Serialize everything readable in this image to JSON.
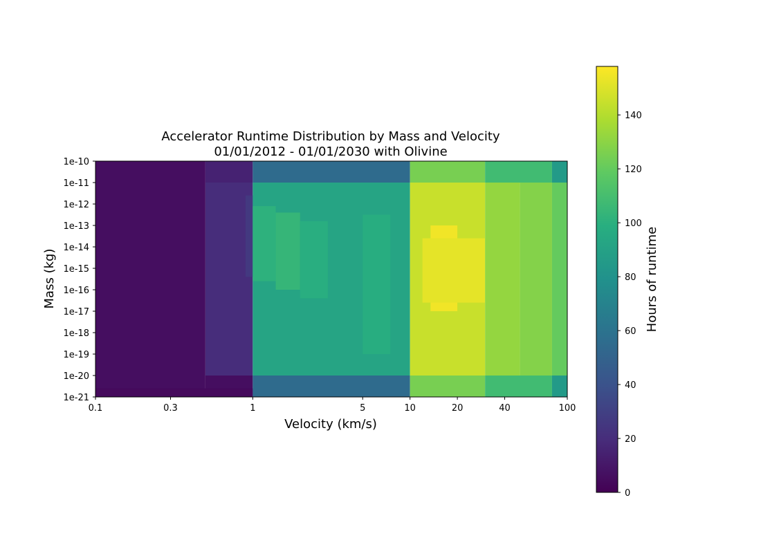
{
  "chart_data": {
    "type": "heatmap",
    "title": "Accelerator Runtime Distribution by Mass and Velocity",
    "subtitle": "01/01/2012 - 01/01/2030 with Olivine",
    "xlabel": "Velocity (km/s)",
    "ylabel": "Mass (kg)",
    "x_scale": "log",
    "y_scale": "log",
    "xlim": [
      0.1,
      100
    ],
    "ylim": [
      1e-21,
      1e-10
    ],
    "x_tick_values": [
      0.1,
      0.3,
      1,
      5,
      10,
      20,
      40,
      100
    ],
    "x_tick_labels": [
      "0.1",
      "0.3",
      "1",
      "5",
      "10",
      "20",
      "40",
      "100"
    ],
    "y_tick_exponents": [
      -10,
      -11,
      -12,
      -13,
      -14,
      -15,
      -16,
      -17,
      -18,
      -19,
      -20,
      -21
    ],
    "y_tick_labels": [
      "1e-10",
      "1e-11",
      "1e-12",
      "1e-13",
      "1e-14",
      "1e-15",
      "1e-16",
      "1e-17",
      "1e-18",
      "1e-19",
      "1e-20",
      "1e-21"
    ],
    "colormap": "viridis",
    "colorbar": {
      "label": "Hours of runtime",
      "range": [
        0,
        158
      ],
      "tick_values": [
        0,
        20,
        40,
        60,
        80,
        100,
        120,
        140
      ],
      "tick_labels": [
        "0",
        "20",
        "40",
        "60",
        "80",
        "100",
        "120",
        "140"
      ]
    },
    "grid": false,
    "cells": [
      {
        "x": [
          0.1,
          0.5
        ],
        "y": [
          -21,
          -10
        ],
        "value": 6
      },
      {
        "x": [
          0.5,
          1
        ],
        "y": [
          -20,
          -11
        ],
        "value": 20
      },
      {
        "x": [
          0.5,
          1
        ],
        "y": [
          -11,
          -10
        ],
        "value": 15
      },
      {
        "x": [
          0.9,
          1
        ],
        "y": [
          -15.4,
          -11.6
        ],
        "value": 26
      },
      {
        "x": [
          0.5,
          1
        ],
        "y": [
          -21,
          -20
        ],
        "value": 6
      },
      {
        "x": [
          0.1,
          1
        ],
        "y": [
          -21,
          -20.6
        ],
        "value": 4
      },
      {
        "x": [
          1,
          10
        ],
        "y": [
          -20,
          -11
        ],
        "value": 92
      },
      {
        "x": [
          1,
          10
        ],
        "y": [
          -11,
          -10
        ],
        "value": 55
      },
      {
        "x": [
          1,
          10
        ],
        "y": [
          -21,
          -20
        ],
        "value": 55
      },
      {
        "x": [
          1,
          1.4
        ],
        "y": [
          -15.6,
          -12.1
        ],
        "value": 101
      },
      {
        "x": [
          1.4,
          2
        ],
        "y": [
          -16,
          -12.4
        ],
        "value": 104
      },
      {
        "x": [
          2,
          3
        ],
        "y": [
          -16.4,
          -12.8
        ],
        "value": 99
      },
      {
        "x": [
          5,
          7.5
        ],
        "y": [
          -19,
          -12.5
        ],
        "value": 98
      },
      {
        "x": [
          10,
          30
        ],
        "y": [
          -20,
          -11
        ],
        "value": 145
      },
      {
        "x": [
          10,
          30
        ],
        "y": [
          -11,
          -10
        ],
        "value": 125
      },
      {
        "x": [
          10,
          30
        ],
        "y": [
          -21,
          -20
        ],
        "value": 125
      },
      {
        "x": [
          13.5,
          20
        ],
        "y": [
          -17,
          -13
        ],
        "value": 155
      },
      {
        "x": [
          12,
          30
        ],
        "y": [
          -16.6,
          -13.6
        ],
        "value": 152
      },
      {
        "x": [
          30,
          50
        ],
        "y": [
          -20,
          -11
        ],
        "value": 132
      },
      {
        "x": [
          50,
          80
        ],
        "y": [
          -20,
          -11
        ],
        "value": 128
      },
      {
        "x": [
          30,
          80
        ],
        "y": [
          -11,
          -10
        ],
        "value": 108
      },
      {
        "x": [
          30,
          80
        ],
        "y": [
          -21,
          -20
        ],
        "value": 108
      },
      {
        "x": [
          80,
          100
        ],
        "y": [
          -20,
          -11
        ],
        "value": 120
      },
      {
        "x": [
          80,
          100
        ],
        "y": [
          -11,
          -10
        ],
        "value": 85
      },
      {
        "x": [
          80,
          100
        ],
        "y": [
          -21,
          -20
        ],
        "value": 85
      }
    ]
  }
}
